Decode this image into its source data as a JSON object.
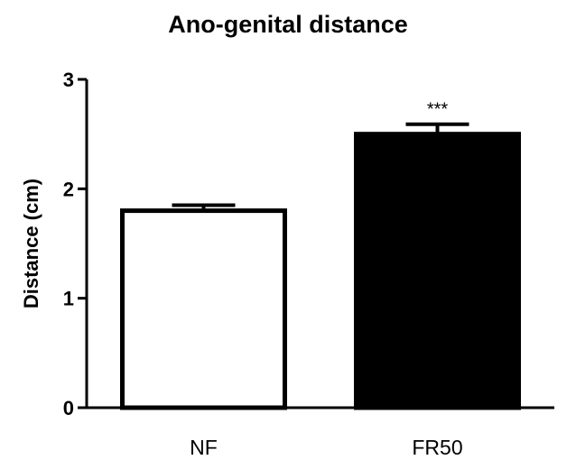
{
  "chart_data": {
    "type": "bar",
    "title": "Ano-genital distance",
    "ylabel": "Distance (cm)",
    "xlabel": "",
    "ylim": [
      0,
      3
    ],
    "yticks": [
      "0",
      "1",
      "2",
      "3"
    ],
    "categories": [
      "NF",
      "FR50"
    ],
    "values": [
      1.8,
      2.5
    ],
    "errors": [
      0.05,
      0.09
    ],
    "bar_colors": [
      "#ffffff",
      "#000000"
    ],
    "annotations": [
      "",
      "***"
    ],
    "grid": false
  }
}
